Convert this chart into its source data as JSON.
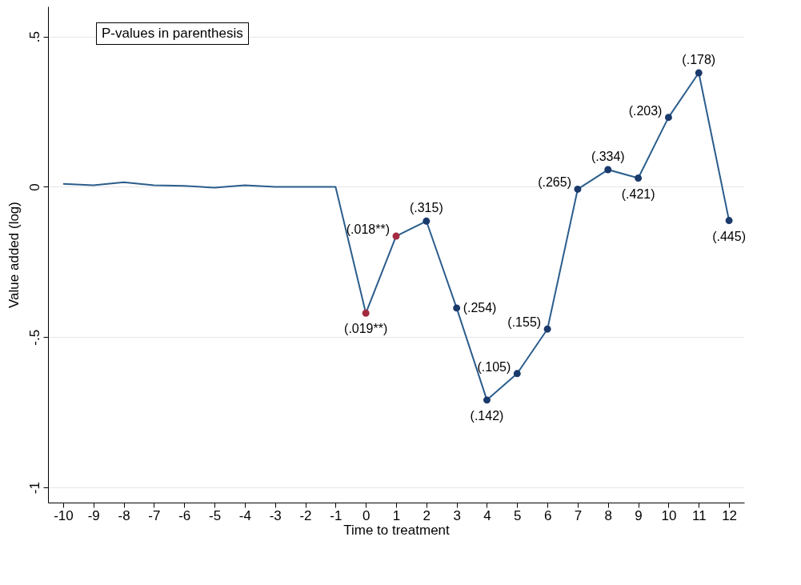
{
  "chart_data": {
    "type": "line",
    "xlabel": "Time to treatment",
    "ylabel": "Value added (log)",
    "annotations": [
      "P-values in parenthesis",
      {
        "text": "(.019**)",
        "x": 0,
        "y": -0.42
      },
      {
        "text": "(.018**)",
        "x": 1,
        "y": -0.164
      },
      {
        "text": "(.315)",
        "x": 2,
        "y": -0.114
      },
      {
        "text": "(.254)",
        "x": 3,
        "y": -0.403
      },
      {
        "text": "(.142)",
        "x": 4,
        "y": -0.709
      },
      {
        "text": "(.105)",
        "x": 5,
        "y": -0.621
      },
      {
        "text": "(.155)",
        "x": 6,
        "y": -0.473
      },
      {
        "text": "(.265)",
        "x": 7,
        "y": -0.008
      },
      {
        "text": "(.334)",
        "x": 8,
        "y": 0.057
      },
      {
        "text": "(.421)",
        "x": 9,
        "y": 0.029
      },
      {
        "text": "(.203)",
        "x": 10,
        "y": 0.231
      },
      {
        "text": "(.178)",
        "x": 11,
        "y": 0.379
      },
      {
        "text": "(.445)",
        "x": 12,
        "y": -0.112
      }
    ],
    "xlim": [
      -10.5,
      12.5
    ],
    "xticks": [
      -10,
      -9,
      -8,
      -7,
      -6,
      -5,
      -4,
      -3,
      -2,
      -1,
      0,
      1,
      2,
      3,
      4,
      5,
      6,
      7,
      8,
      9,
      10,
      11,
      12
    ],
    "ylim": [
      -1.05,
      0.6
    ],
    "yticks": [
      {
        "value": -1,
        "label": "-1"
      },
      {
        "value": -0.5,
        "label": "-.5"
      },
      {
        "value": 0,
        "label": "0"
      },
      {
        "value": 0.5,
        "label": ".5"
      }
    ],
    "grid": "y",
    "series": [
      {
        "color": "#2b5d8c",
        "marker": "none",
        "x": [
          -10,
          -9,
          -8,
          -7,
          -6,
          -5,
          -4,
          -3,
          -2,
          -1,
          0,
          1,
          2,
          3,
          4,
          5,
          6,
          7,
          8,
          9,
          10,
          11,
          12
        ],
        "values": [
          0.01,
          0.005,
          0.015,
          0.005,
          0.003,
          -0.003,
          0.005,
          0,
          0,
          0,
          -0.42,
          -0.164,
          -0.114,
          -0.403,
          -0.709,
          -0.621,
          -0.473,
          -0.008,
          0.057,
          0.029,
          0.231,
          0.379,
          -0.112
        ]
      },
      {
        "type": "scatter",
        "marker": "circle",
        "x": [
          0,
          1,
          2,
          3,
          4,
          5,
          6,
          7,
          8,
          9,
          10,
          11,
          12
        ],
        "values": [
          -0.42,
          -0.164,
          -0.114,
          -0.403,
          -0.709,
          -0.621,
          -0.473,
          -0.008,
          0.057,
          0.029,
          0.231,
          0.379,
          -0.112
        ],
        "colors": [
          "#a32a3f",
          "#a32a3f",
          "#1a3a6b",
          "#1a3a6b",
          "#1a3a6b",
          "#1a3a6b",
          "#1a3a6b",
          "#1a3a6b",
          "#1a3a6b",
          "#1a3a6b",
          "#1a3a6b",
          "#1a3a6b",
          "#1a3a6b"
        ]
      }
    ]
  }
}
